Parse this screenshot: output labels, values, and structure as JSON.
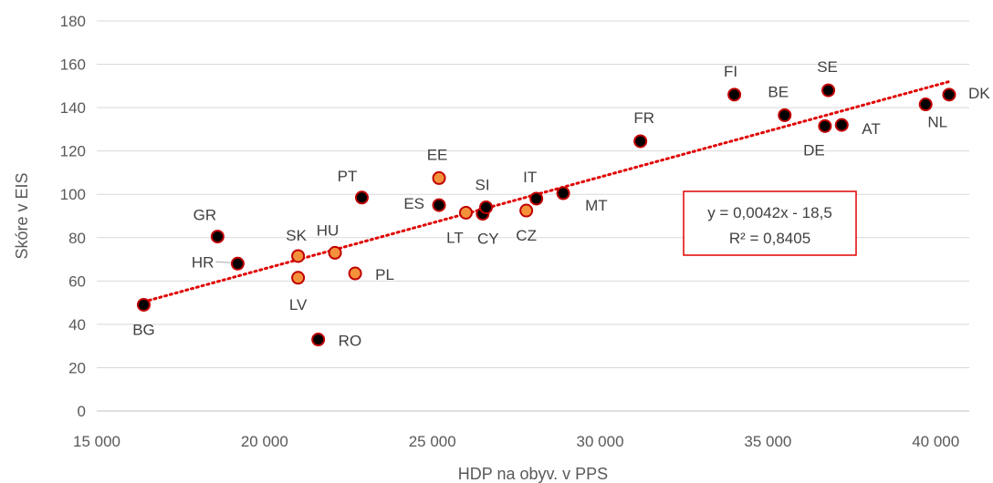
{
  "chart_data": {
    "type": "scatter",
    "xlabel": "HDP na obyv. v PPS",
    "ylabel": "Skóre v EIS",
    "xlim": [
      15000,
      41000
    ],
    "ylim": [
      0,
      180
    ],
    "x_ticks": [
      {
        "value": 15000,
        "label": "15 000"
      },
      {
        "value": 20000,
        "label": "20 000"
      },
      {
        "value": 25000,
        "label": "25 000"
      },
      {
        "value": 30000,
        "label": "30 000"
      },
      {
        "value": 35000,
        "label": "35 000"
      },
      {
        "value": 40000,
        "label": "40 000"
      }
    ],
    "y_ticks": [
      {
        "value": 0,
        "label": "0"
      },
      {
        "value": 20,
        "label": "20"
      },
      {
        "value": 40,
        "label": "40"
      },
      {
        "value": 60,
        "label": "60"
      },
      {
        "value": 80,
        "label": "80"
      },
      {
        "value": 100,
        "label": "100"
      },
      {
        "value": 120,
        "label": "120"
      },
      {
        "value": 140,
        "label": "140"
      },
      {
        "value": 160,
        "label": "160"
      },
      {
        "value": 180,
        "label": "180"
      }
    ],
    "grid": "horizontal",
    "colors": {
      "default_fill": "#000000",
      "highlight_fill": "#F4923C",
      "marker_stroke": "#C00000",
      "trendline": "#E00000",
      "gridline": "#D9D9D9",
      "axis_text": "#595959"
    },
    "points": [
      {
        "label": "BG",
        "x": 16400,
        "y": 49,
        "highlight": false
      },
      {
        "label": "GR",
        "x": 18600,
        "y": 80.5,
        "highlight": false
      },
      {
        "label": "HR",
        "x": 19200,
        "y": 68,
        "highlight": false
      },
      {
        "label": "SK",
        "x": 21000,
        "y": 71.5,
        "highlight": true
      },
      {
        "label": "LV",
        "x": 21000,
        "y": 61.5,
        "highlight": true
      },
      {
        "label": "RO",
        "x": 21600,
        "y": 33,
        "highlight": false
      },
      {
        "label": "HU",
        "x": 22100,
        "y": 73,
        "highlight": true
      },
      {
        "label": "PL",
        "x": 22700,
        "y": 63.5,
        "highlight": true
      },
      {
        "label": "PT",
        "x": 22900,
        "y": 98.5,
        "highlight": false
      },
      {
        "label": "EE",
        "x": 25200,
        "y": 107.5,
        "highlight": true
      },
      {
        "label": "ES",
        "x": 25200,
        "y": 95,
        "highlight": false
      },
      {
        "label": "LT",
        "x": 26000,
        "y": 91.5,
        "highlight": true
      },
      {
        "label": "CY",
        "x": 26500,
        "y": 91,
        "highlight": false
      },
      {
        "label": "SI",
        "x": 26600,
        "y": 94,
        "highlight": false
      },
      {
        "label": "CZ",
        "x": 27800,
        "y": 92.5,
        "highlight": true
      },
      {
        "label": "IT",
        "x": 28100,
        "y": 98,
        "highlight": false
      },
      {
        "label": "MT",
        "x": 28900,
        "y": 100.5,
        "highlight": false
      },
      {
        "label": "FR",
        "x": 31200,
        "y": 124.5,
        "highlight": false
      },
      {
        "label": "FI",
        "x": 34000,
        "y": 146,
        "highlight": false
      },
      {
        "label": "BE",
        "x": 35500,
        "y": 136.5,
        "highlight": false
      },
      {
        "label": "DE",
        "x": 36700,
        "y": 131.5,
        "highlight": false
      },
      {
        "label": "SE",
        "x": 36800,
        "y": 148,
        "highlight": false
      },
      {
        "label": "AT",
        "x": 37200,
        "y": 132,
        "highlight": false
      },
      {
        "label": "NL",
        "x": 39700,
        "y": 141.5,
        "highlight": false
      },
      {
        "label": "DK",
        "x": 40400,
        "y": 146,
        "highlight": false
      }
    ],
    "trendline": {
      "type": "linear",
      "x_start": 16400,
      "x_end": 40400,
      "y_start": 50.4,
      "y_end": 152
    },
    "equation": {
      "line1": "y = 0,0042x - 18,5",
      "line2": "R² = 0,8405"
    }
  }
}
